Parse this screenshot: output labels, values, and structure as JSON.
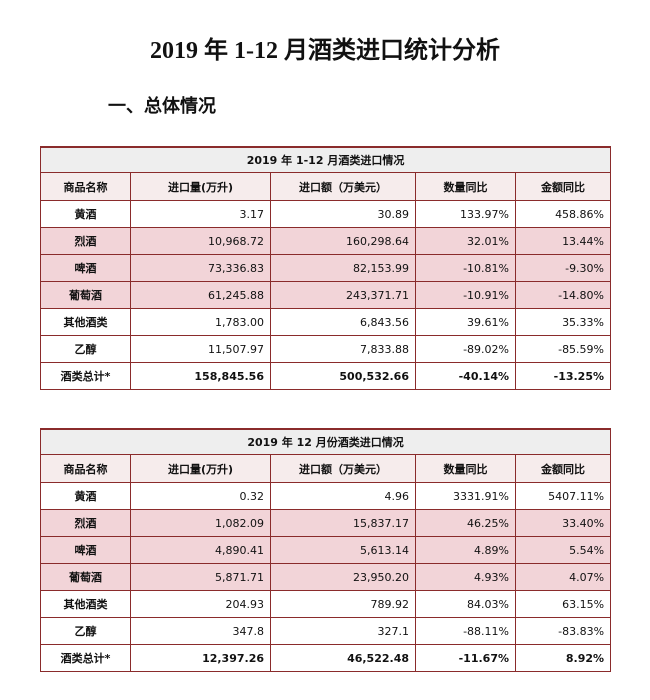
{
  "header": {
    "title": "2019 年 1-12 月酒类进口统计分析",
    "section": "一、总体情况"
  },
  "tables": [
    {
      "title": "2019 年 1-12 月酒类进口情况",
      "columns": [
        "商品名称",
        "进口量(万升)",
        "进口额（万美元）",
        "数量同比",
        "金额同比"
      ],
      "rows": [
        [
          "黄酒",
          "3.17",
          "30.89",
          "133.97%",
          "458.86%"
        ],
        [
          "烈酒",
          "10,968.72",
          "160,298.64",
          "32.01%",
          "13.44%"
        ],
        [
          "啤酒",
          "73,336.83",
          "82,153.99",
          "-10.81%",
          "-9.30%"
        ],
        [
          "葡萄酒",
          "61,245.88",
          "243,371.71",
          "-10.91%",
          "-14.80%"
        ],
        [
          "其他酒类",
          "1,783.00",
          "6,843.56",
          "39.61%",
          "35.33%"
        ],
        [
          "乙醇",
          "11,507.97",
          "7,833.88",
          "-89.02%",
          "-85.59%"
        ],
        [
          "酒类总计*",
          "158,845.56",
          "500,532.66",
          "-40.14%",
          "-13.25%"
        ]
      ]
    },
    {
      "title": "2019 年 12 月份酒类进口情况",
      "columns": [
        "商品名称",
        "进口量(万升)",
        "进口额（万美元）",
        "数量同比",
        "金额同比"
      ],
      "rows": [
        [
          "黄酒",
          "0.32",
          "4.96",
          "3331.91%",
          "5407.11%"
        ],
        [
          "烈酒",
          "1,082.09",
          "15,837.17",
          "46.25%",
          "33.40%"
        ],
        [
          "啤酒",
          "4,890.41",
          "5,613.14",
          "4.89%",
          "5.54%"
        ],
        [
          "葡萄酒",
          "5,871.71",
          "23,950.20",
          "4.93%",
          "4.07%"
        ],
        [
          "其他酒类",
          "204.93",
          "789.92",
          "84.03%",
          "63.15%"
        ],
        [
          "乙醇",
          "347.8",
          "327.1",
          "-88.11%",
          "-83.83%"
        ],
        [
          "酒类总计*",
          "12,397.26",
          "46,522.48",
          "-11.67%",
          "8.92%"
        ]
      ]
    }
  ]
}
